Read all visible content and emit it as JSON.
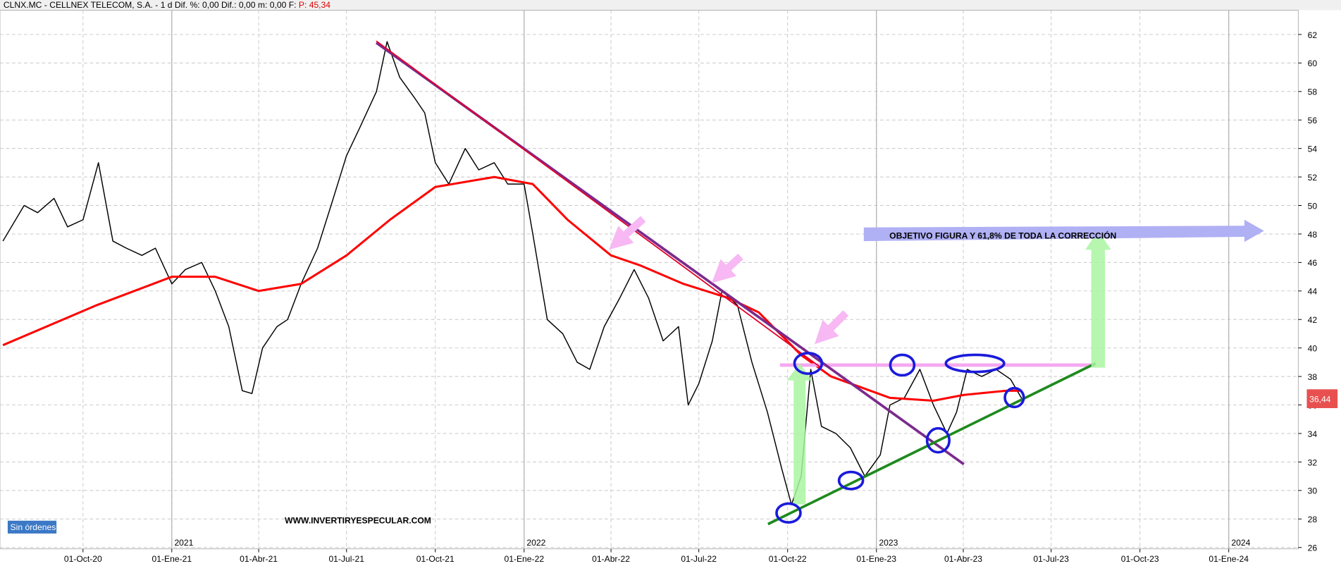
{
  "chart_data": {
    "type": "line",
    "title": "CLNX.MC - CELLNEX TELECOM, S.A. -  1 d  Dif. %: 0,00  Dif.: 0,00  m: 0,00  F:",
    "title_price": "P: 45,34",
    "annotations": [
      "OBJETIVO FIGURA Y 61,8% DE TODA LA CORRECCIÓN",
      "WWW.INVERTIRYESPECULAR.COM",
      "Sin órdenes"
    ],
    "last_price": {
      "value": 36.44,
      "label": "36,44"
    },
    "series": [
      {
        "color": "#000000",
        "x": [
          "2020-07-10",
          "2020-08-01",
          "2020-08-15",
          "2020-09-01",
          "2020-09-15",
          "2020-10-01",
          "2020-10-17",
          "2020-11-01",
          "2020-11-15",
          "2020-12-01",
          "2020-12-15",
          "2021-01-01",
          "2021-01-15",
          "2021-02-01",
          "2021-02-15",
          "2021-03-01",
          "2021-03-15",
          "2021-03-25",
          "2021-04-05",
          "2021-04-20",
          "2021-05-01",
          "2021-05-15",
          "2021-06-01",
          "2021-06-15",
          "2021-07-01",
          "2021-07-15",
          "2021-08-01",
          "2021-08-12",
          "2021-08-25",
          "2021-09-10",
          "2021-09-20",
          "2021-10-01",
          "2021-10-15",
          "2021-11-01",
          "2021-11-15",
          "2021-12-01",
          "2021-12-15",
          "2022-01-01",
          "2022-01-10",
          "2022-01-25",
          "2022-02-10",
          "2022-02-25",
          "2022-03-10",
          "2022-03-25",
          "2022-04-10",
          "2022-04-25",
          "2022-05-10",
          "2022-05-25",
          "2022-06-10",
          "2022-06-20",
          "2022-07-01",
          "2022-07-15",
          "2022-07-25",
          "2022-08-10",
          "2022-08-25",
          "2022-09-10",
          "2022-09-25",
          "2022-10-05",
          "2022-10-15",
          "2022-10-25",
          "2022-11-05",
          "2022-11-20",
          "2022-12-05",
          "2022-12-20",
          "2023-01-05",
          "2023-01-15",
          "2023-01-30",
          "2023-02-15",
          "2023-03-01",
          "2023-03-15",
          "2023-03-25",
          "2023-04-05",
          "2023-04-20",
          "2023-05-05",
          "2023-05-20",
          "2023-06-01"
        ],
        "values": [
          47.5,
          50,
          49.5,
          50.5,
          48.5,
          49,
          53,
          47.5,
          47,
          46.5,
          47,
          44.5,
          45.5,
          46,
          44,
          41.5,
          37,
          36.8,
          40,
          41.5,
          42,
          44.5,
          47,
          50,
          53.5,
          55.5,
          58,
          61.5,
          59,
          57.5,
          56.5,
          53,
          51.5,
          54,
          52.5,
          53,
          51.5,
          51.5,
          48,
          42,
          41,
          39,
          38.5,
          41.5,
          43.5,
          45.5,
          43.5,
          40.5,
          41.5,
          36,
          37.5,
          40.5,
          44,
          43,
          39,
          35.5,
          31.5,
          29,
          31,
          38.5,
          34.5,
          34,
          33,
          31,
          32.5,
          36,
          36.5,
          38.5,
          36,
          34,
          35.5,
          38.5,
          38,
          38.5,
          37.8,
          36.4
        ]
      },
      {
        "color": "#ff0000",
        "x": [
          "2020-07-10",
          "2020-10-15",
          "2021-01-01",
          "2021-02-15",
          "2021-04-01",
          "2021-05-15",
          "2021-07-01",
          "2021-08-15",
          "2021-10-01",
          "2021-12-01",
          "2022-01-10",
          "2022-02-15",
          "2022-04-01",
          "2022-05-01",
          "2022-06-15",
          "2022-08-01",
          "2022-09-01",
          "2022-10-15",
          "2022-11-15",
          "2023-01-15",
          "2023-03-01",
          "2023-04-01",
          "2023-05-15",
          "2023-06-01"
        ],
        "values": [
          40.2,
          43,
          45,
          45,
          44,
          44.5,
          46.5,
          49,
          51.3,
          52,
          51.5,
          49,
          46.5,
          45.8,
          44.5,
          43.5,
          42.5,
          39.5,
          38,
          36.5,
          36.3,
          36.7,
          37,
          37
        ]
      }
    ],
    "xlim": [
      "2020-07-07",
      "2024-03-13"
    ],
    "xticks": [
      {
        "value": "2020-10-01",
        "label": "01-Oct-20"
      },
      {
        "value": "2021-01-01",
        "label": "01-Ene-21"
      },
      {
        "value": "2021-04-01",
        "label": "01-Abr-21"
      },
      {
        "value": "2021-07-01",
        "label": "01-Jul-21"
      },
      {
        "value": "2021-10-01",
        "label": "01-Oct-21"
      },
      {
        "value": "2022-01-01",
        "label": "01-Ene-22"
      },
      {
        "value": "2022-04-01",
        "label": "01-Abr-22"
      },
      {
        "value": "2022-07-01",
        "label": "01-Jul-22"
      },
      {
        "value": "2022-10-01",
        "label": "01-Oct-22"
      },
      {
        "value": "2023-01-01",
        "label": "01-Ene-23"
      },
      {
        "value": "2023-04-01",
        "label": "01-Abr-23"
      },
      {
        "value": "2023-07-01",
        "label": "01-Jul-23"
      },
      {
        "value": "2023-10-01",
        "label": "01-Oct-23"
      },
      {
        "value": "2024-01-01",
        "label": "01-Ene-24"
      }
    ],
    "year_ticks": [
      {
        "value": "2021-01-01",
        "label": "2021"
      },
      {
        "value": "2022-01-01",
        "label": "2022"
      },
      {
        "value": "2023-01-01",
        "label": "2023"
      },
      {
        "value": "2024-01-01",
        "label": "2024"
      }
    ],
    "ylim": [
      25.9,
      63.7
    ],
    "yticks": [
      26,
      28,
      30,
      32,
      34,
      36,
      38,
      40,
      42,
      44,
      46,
      48,
      50,
      52,
      54,
      56,
      58,
      60,
      62
    ],
    "grid": true
  }
}
